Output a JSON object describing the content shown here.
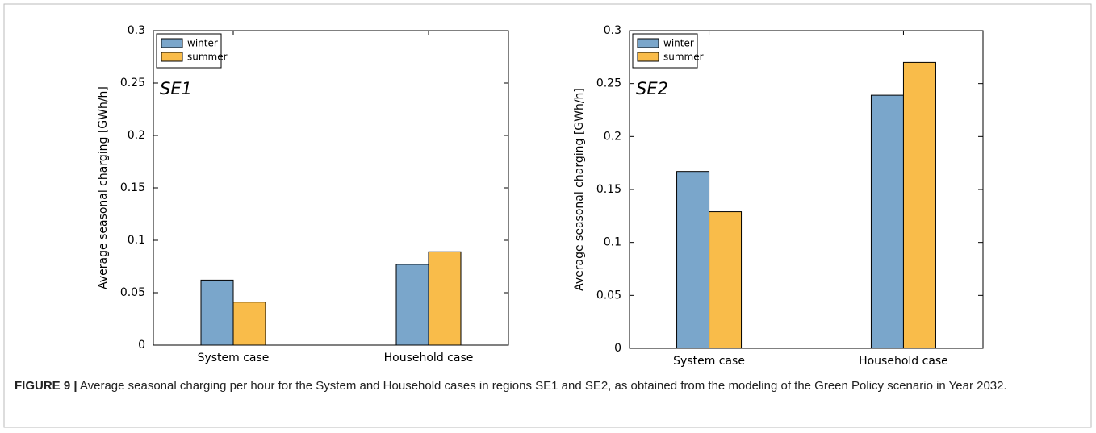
{
  "chart_data": [
    {
      "type": "bar",
      "annotation": "SE1",
      "ylabel": "Average seasonal charging [GWh/h]",
      "categories": [
        "System case",
        "Household case"
      ],
      "series": [
        {
          "name": "winter",
          "color": "#7aa6cb",
          "values": [
            0.062,
            0.077
          ]
        },
        {
          "name": "summer",
          "color": "#f9bc4a",
          "values": [
            0.041,
            0.089
          ]
        }
      ],
      "ylim": [
        0,
        0.3
      ],
      "yticks": [
        0,
        0.05,
        0.1,
        0.15,
        0.2,
        0.25,
        0.3
      ],
      "legend": "upper-left"
    },
    {
      "type": "bar",
      "annotation": "SE2",
      "ylabel": "Average seasonal charging [GWh/h]",
      "categories": [
        "System case",
        "Household case"
      ],
      "series": [
        {
          "name": "winter",
          "color": "#7aa6cb",
          "values": [
            0.167,
            0.239
          ]
        },
        {
          "name": "summer",
          "color": "#f9bc4a",
          "values": [
            0.129,
            0.27
          ]
        }
      ],
      "ylim": [
        0,
        0.3
      ],
      "yticks": [
        0,
        0.05,
        0.1,
        0.15,
        0.2,
        0.25,
        0.3
      ],
      "legend": "upper-left"
    }
  ],
  "caption": {
    "label": "FIGURE 9 |",
    "text": "Average seasonal charging per hour for the System and Household cases in regions SE1 and SE2, as obtained from the modeling of the Green Policy scenario in Year 2032."
  }
}
